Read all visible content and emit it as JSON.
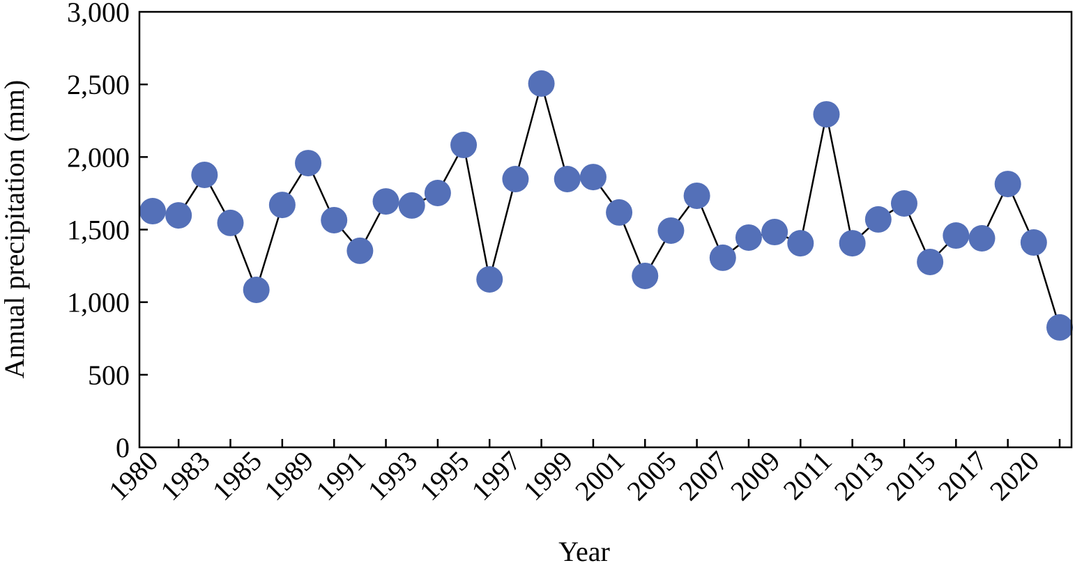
{
  "chart_data": {
    "type": "line",
    "title": "",
    "xlabel": "Year",
    "ylabel": "Annual precipitation (mm)",
    "ylim": [
      0,
      3000
    ],
    "yticks": [
      "0",
      "500",
      "1,000",
      "1,500",
      "2,000",
      "2,500",
      "3,000"
    ],
    "ytick_values": [
      0,
      500,
      1000,
      1500,
      2000,
      2500,
      3000
    ],
    "xtick_labels": [
      "1980",
      "1983",
      "1985",
      "1989",
      "1991",
      "1993",
      "1995",
      "1997",
      "1999",
      "2001",
      "2005",
      "2007",
      "2009",
      "2011",
      "2013",
      "2015",
      "2017",
      "2020"
    ],
    "xtick_label_every": 2,
    "grid": false,
    "series": [
      {
        "name": "Annual precipitation",
        "color": "#5470b8",
        "values": [
          1627,
          1598,
          1877,
          1546,
          1085,
          1670,
          1958,
          1565,
          1354,
          1694,
          1666,
          1752,
          2083,
          1157,
          1848,
          2506,
          1848,
          1862,
          1618,
          1181,
          1493,
          1733,
          1306,
          1445,
          1483,
          1406,
          2294,
          1406,
          1570,
          1680,
          1277,
          1459,
          1440,
          1814,
          1411,
          826
        ]
      }
    ]
  }
}
